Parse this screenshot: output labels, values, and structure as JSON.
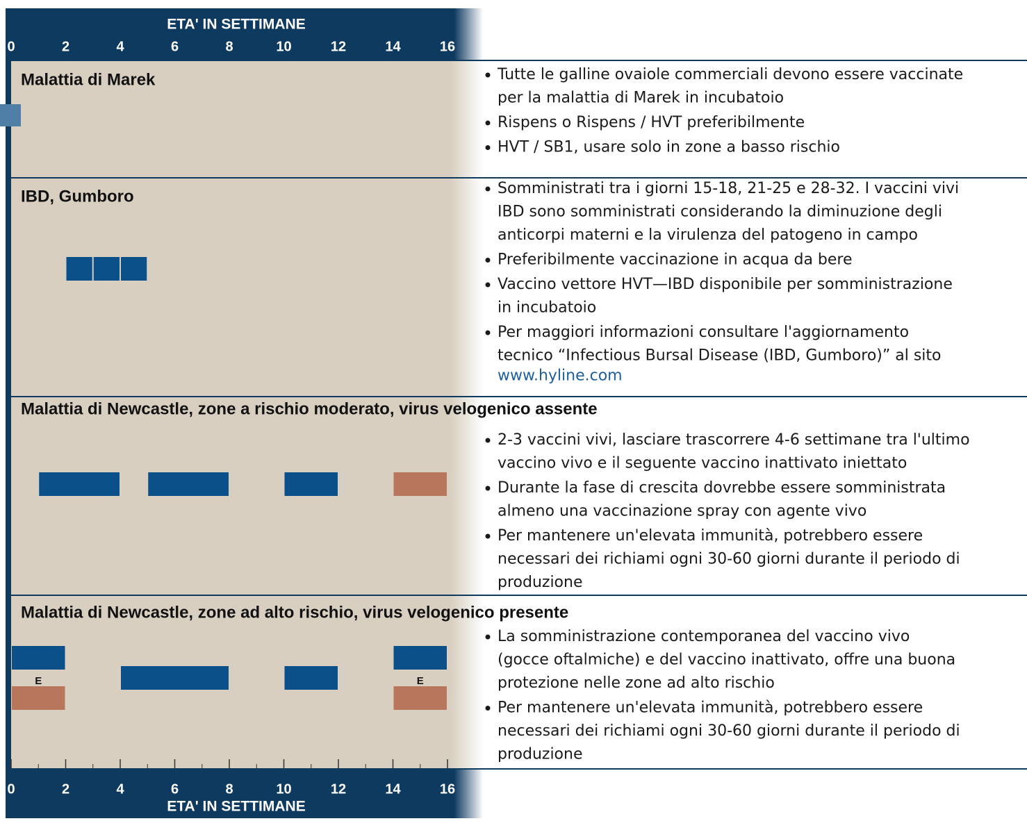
{
  "chart_data": {
    "type": "timeline",
    "x_label": "ETA' IN SETTIMANE",
    "xlim": [
      0,
      16
    ],
    "xticks": [
      0,
      2,
      4,
      6,
      8,
      10,
      12,
      14,
      16
    ],
    "colors": {
      "live": "#0b5089",
      "inactivated": "#b8775c"
    },
    "rows": [
      {
        "title": "Malattia di Marek",
        "bullets": [
          [
            "Tutte le galline ovaiole commerciali devono essere vaccinate",
            "per la malattia di Marek in incubatoio"
          ],
          [
            "Rispens o Rispens / HVT preferibilmente"
          ],
          [
            "HVT / SB1, usare solo in zone a basso rischio"
          ]
        ],
        "bars": []
      },
      {
        "title": "IBD, Gumboro",
        "bullets": [
          [
            "Somministrati tra i giorni 15-18, 21-25 e 28-32. I vaccini vivi",
            "IBD sono somministrati considerando la diminuzione degli",
            "anticorpi materni e la virulenza del patogeno in campo"
          ],
          [
            "Preferibilmente vaccinazione in acqua da bere"
          ],
          [
            "Vaccino vettore HVT—IBD disponibile per somministrazione",
            "in incubatoio"
          ],
          [
            "Per maggiori informazioni consultare l'aggiornamento",
            "tecnico “Infectious Bursal Disease (IBD, Gumboro)” al sito"
          ]
        ],
        "link": "www.hyline.com",
        "bars": [
          {
            "start": 2,
            "end": 3,
            "kind": "live",
            "lane": 0
          },
          {
            "start": 3,
            "end": 4,
            "kind": "live",
            "lane": 0
          },
          {
            "start": 4,
            "end": 5,
            "kind": "live",
            "lane": 0
          }
        ]
      },
      {
        "title": "Malattia di Newcastle, zone a rischio moderato, virus velogenico assente",
        "bullets": [
          [
            "2-3 vaccini vivi, lasciare trascorrere 4-6 settimane tra l'ultimo",
            "vaccino vivo e il seguente vaccino inattivato iniettato"
          ],
          [
            "Durante la fase di crescita dovrebbe essere somministrata",
            "almeno una vaccinazione spray con agente vivo"
          ],
          [
            "Per mantenere un'elevata immunità, potrebbero essere",
            "necessari dei richiami ogni 30-60 giorni durante il periodo di",
            "produzione"
          ]
        ],
        "bars": [
          {
            "start": 1,
            "end": 4,
            "kind": "live",
            "lane": 0
          },
          {
            "start": 5,
            "end": 8,
            "kind": "live",
            "lane": 0
          },
          {
            "start": 10,
            "end": 12,
            "kind": "live",
            "lane": 0
          },
          {
            "start": 14,
            "end": 16,
            "kind": "inactivated",
            "lane": 0
          }
        ]
      },
      {
        "title": "Malattia di Newcastle, zone ad alto rischio, virus velogenico presente",
        "bullets": [
          [
            "La somministrazione contemporanea del vaccino vivo",
            "(gocce oftalmiche) e del vaccino inattivato, offre una buona",
            "protezione nelle zone ad alto rischio"
          ],
          [
            "Per mantenere un'elevata immunità, potrebbero essere",
            "necessari dei richiami ogni 30-60 giorni durante il periodo di",
            "produzione"
          ]
        ],
        "bars": [
          {
            "start": 0,
            "end": 2,
            "kind": "live",
            "lane": -1
          },
          {
            "start": 0,
            "end": 2,
            "kind": "inactivated",
            "lane": 1,
            "label": "E"
          },
          {
            "start": 4,
            "end": 8,
            "kind": "live",
            "lane": 0
          },
          {
            "start": 10,
            "end": 12,
            "kind": "live",
            "lane": 0
          },
          {
            "start": 14,
            "end": 16,
            "kind": "live",
            "lane": -1
          },
          {
            "start": 14,
            "end": 16,
            "kind": "inactivated",
            "lane": 1,
            "label": "E"
          }
        ]
      }
    ]
  }
}
